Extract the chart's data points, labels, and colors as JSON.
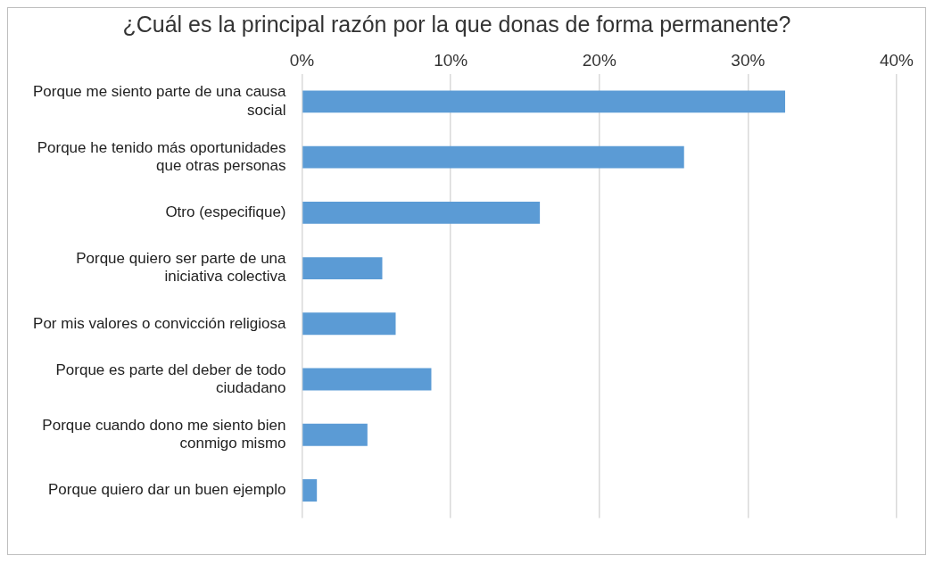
{
  "chart_data": {
    "type": "bar",
    "orientation": "horizontal",
    "title": "¿Cuál es la principal razón por la que donas de forma permanente?",
    "categories": [
      "Porque me siento parte de una causa social",
      "Porque he tenido más oportunidades que otras personas",
      "Otro (especifique)",
      "Porque quiero ser parte de una iniciativa colectiva",
      "Por mis valores o convicción religiosa",
      "Porque es parte del deber de todo ciudadano",
      "Porque cuando dono me siento bien conmigo mismo",
      "Porque quiero dar un buen ejemplo"
    ],
    "values": [
      32.5,
      25.7,
      16.0,
      5.4,
      6.3,
      8.7,
      4.4,
      1.0
    ],
    "color": "#5b9bd5",
    "xlim": [
      0,
      40
    ],
    "xticks": [
      {
        "value": 0,
        "label": "0%"
      },
      {
        "value": 10,
        "label": "10%"
      },
      {
        "value": 20,
        "label": "20%"
      },
      {
        "value": 30,
        "label": "30%"
      },
      {
        "value": 40,
        "label": "40%"
      }
    ],
    "grid": "x",
    "legend": false
  }
}
